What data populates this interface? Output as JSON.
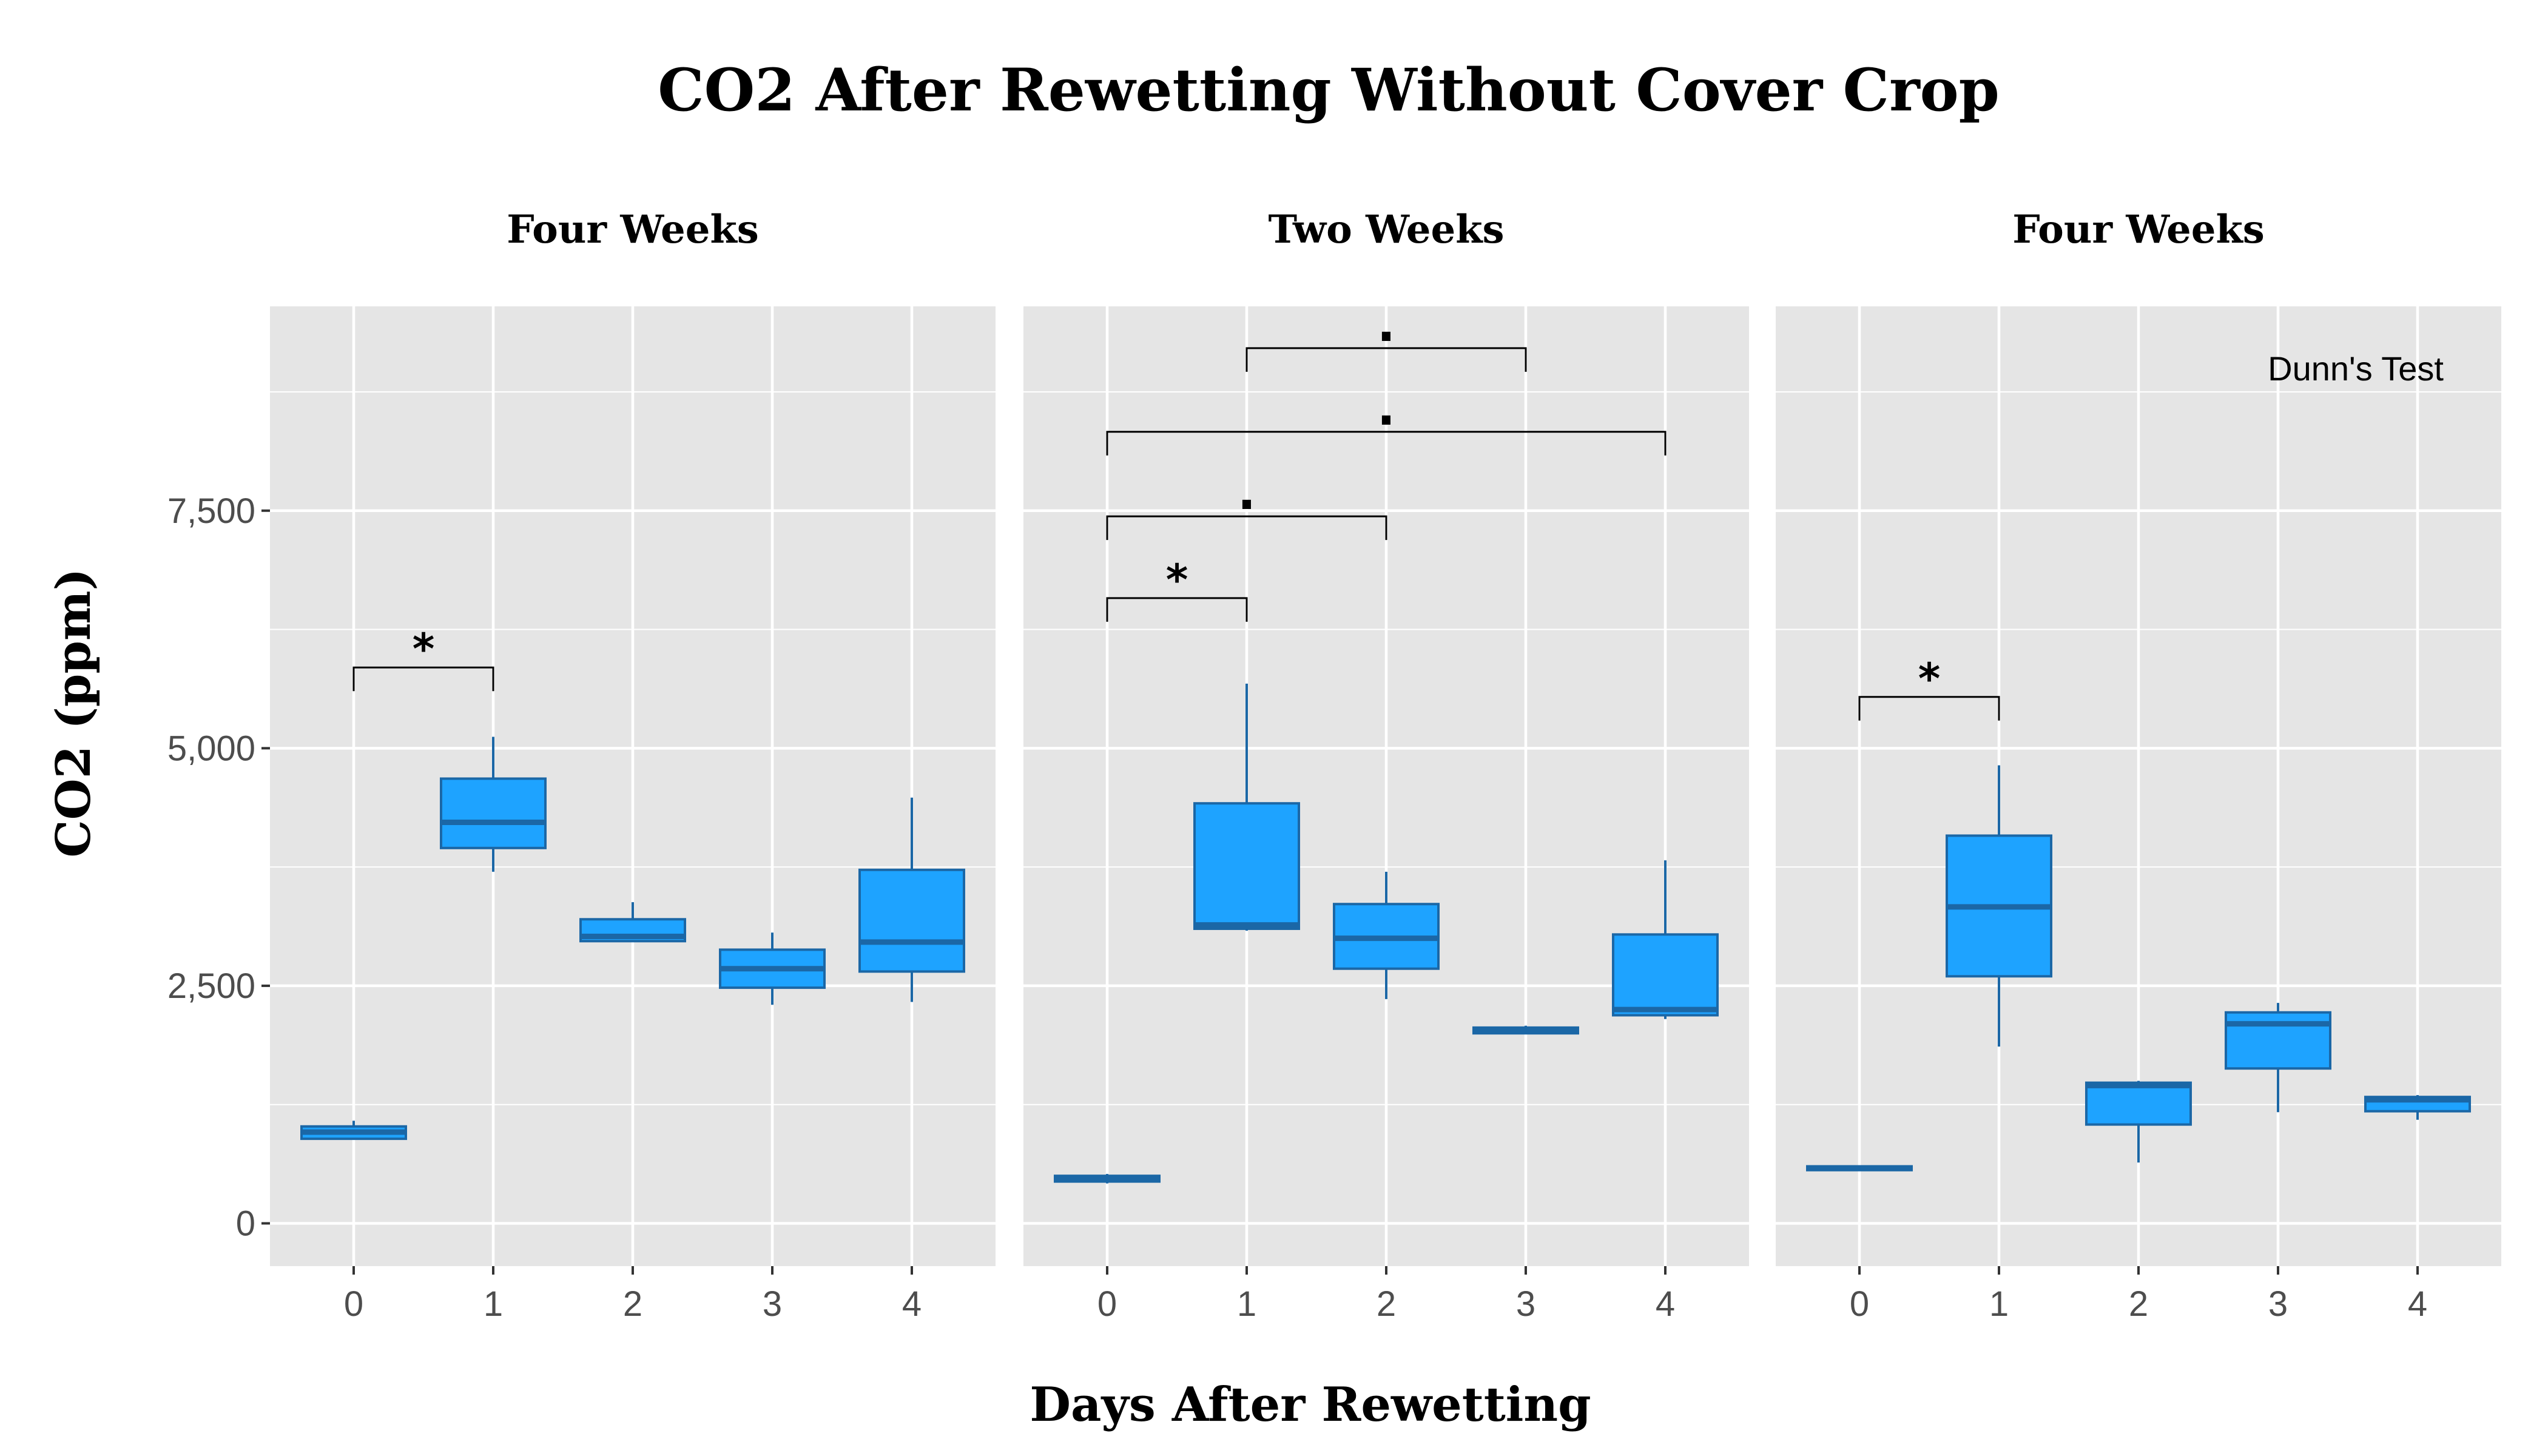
{
  "chart_data": {
    "type": "box",
    "title": "CO2 After Rewetting Without Cover Crop",
    "xlabel": "Days After Rewetting",
    "ylabel": "CO2 (ppm)",
    "ylim": [
      -450,
      9650
    ],
    "y_ticks": [
      0,
      2500,
      5000,
      7500
    ],
    "y_tick_labels": [
      "0",
      "2,500",
      "5,000",
      "7,500"
    ],
    "categories": [
      "0",
      "1",
      "2",
      "3",
      "4"
    ],
    "grid": true,
    "annotation": "Dunn's Test",
    "colors": {
      "panel_bg": "#e5e5e5",
      "grid": "#ffffff",
      "box_fill": "#1ea3ff",
      "box_line": "#1b67a6"
    },
    "panels": [
      {
        "label": "Four Weeks",
        "boxes": [
          {
            "x": "0",
            "lower_whisker": 880,
            "q1": 890,
            "median": 960,
            "q3": 1020,
            "upper_whisker": 1080
          },
          {
            "x": "1",
            "lower_whisker": 3700,
            "q1": 3950,
            "median": 4220,
            "q3": 4680,
            "upper_whisker": 5120
          },
          {
            "x": "2",
            "lower_whisker": 2960,
            "q1": 2970,
            "median": 3020,
            "q3": 3200,
            "upper_whisker": 3380
          },
          {
            "x": "3",
            "lower_whisker": 2300,
            "q1": 2480,
            "median": 2680,
            "q3": 2880,
            "upper_whisker": 3060
          },
          {
            "x": "4",
            "lower_whisker": 2330,
            "q1": 2650,
            "median": 2960,
            "q3": 3720,
            "upper_whisker": 4480
          }
        ],
        "brackets": [
          {
            "from": "0",
            "to": "1",
            "y": 5850,
            "label": "*"
          }
        ]
      },
      {
        "label": "Two Weeks",
        "boxes": [
          {
            "x": "0",
            "lower_whisker": 420,
            "q1": 440,
            "median": 470,
            "q3": 500,
            "upper_whisker": 520
          },
          {
            "x": "1",
            "lower_whisker": 3080,
            "q1": 3100,
            "median": 3140,
            "q3": 4420,
            "upper_whisker": 5680
          },
          {
            "x": "2",
            "lower_whisker": 2360,
            "q1": 2680,
            "median": 3000,
            "q3": 3360,
            "upper_whisker": 3700
          },
          {
            "x": "3",
            "lower_whisker": 1990,
            "q1": 2000,
            "median": 2030,
            "q3": 2060,
            "upper_whisker": 2080
          },
          {
            "x": "4",
            "lower_whisker": 2150,
            "q1": 2190,
            "median": 2250,
            "q3": 3040,
            "upper_whisker": 3820
          }
        ],
        "brackets": [
          {
            "from": "0",
            "to": "1",
            "y": 6580,
            "label": "*"
          },
          {
            "from": "0",
            "to": "2",
            "y": 7440,
            "label": "."
          },
          {
            "from": "0",
            "to": "4",
            "y": 8330,
            "label": "."
          },
          {
            "from": "1",
            "to": "3",
            "y": 9210,
            "label": "."
          }
        ]
      },
      {
        "label": "Four Weeks",
        "boxes": [
          {
            "x": "0",
            "lower_whisker": 560,
            "q1": 560,
            "median": 580,
            "q3": 600,
            "upper_whisker": 610
          },
          {
            "x": "1",
            "lower_whisker": 1860,
            "q1": 2600,
            "median": 3330,
            "q3": 4080,
            "upper_whisker": 4820
          },
          {
            "x": "2",
            "lower_whisker": 640,
            "q1": 1040,
            "median": 1450,
            "q3": 1480,
            "upper_whisker": 1500
          },
          {
            "x": "3",
            "lower_whisker": 1170,
            "q1": 1630,
            "median": 2100,
            "q3": 2220,
            "upper_whisker": 2320
          },
          {
            "x": "4",
            "lower_whisker": 1090,
            "q1": 1180,
            "median": 1300,
            "q3": 1330,
            "upper_whisker": 1350
          }
        ],
        "brackets": [
          {
            "from": "0",
            "to": "1",
            "y": 5540,
            "label": "*"
          }
        ]
      }
    ]
  }
}
